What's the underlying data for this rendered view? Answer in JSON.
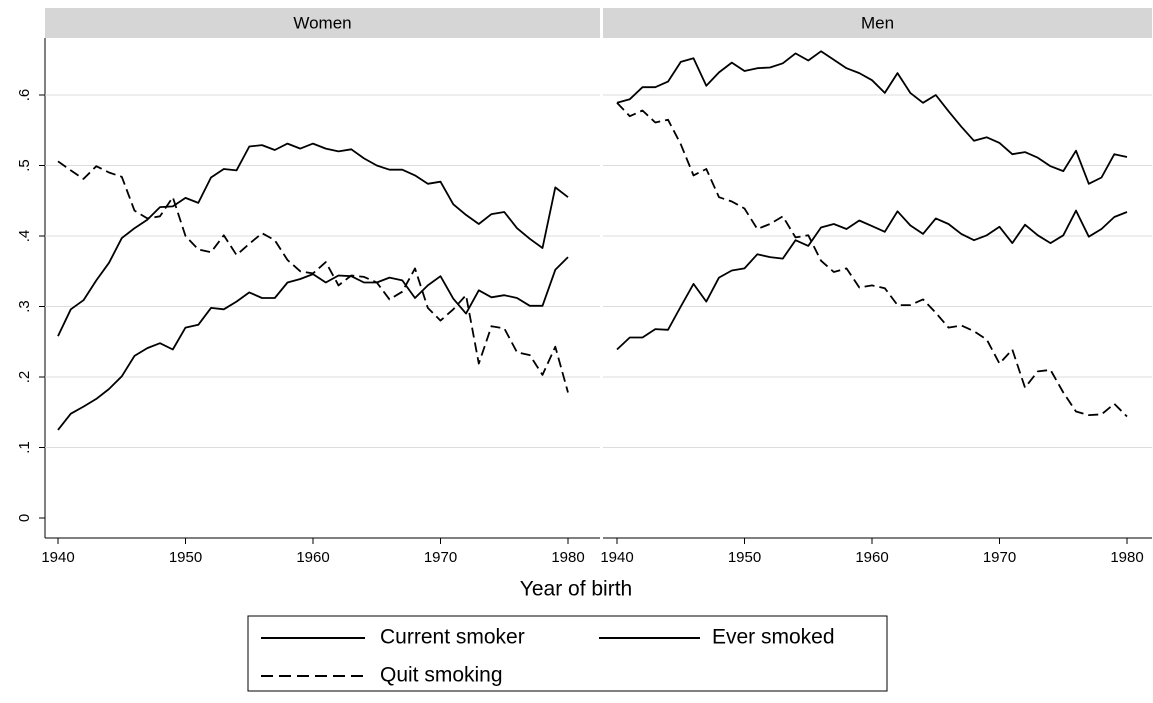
{
  "chart_data": {
    "type": "line",
    "xlabel": "Year of birth",
    "ylabel": "",
    "xlim": [
      1940,
      1980
    ],
    "ylim": [
      0,
      0.6
    ],
    "x_ticks": [
      1940,
      1950,
      1960,
      1970,
      1980
    ],
    "x_tick_labels": [
      "1940",
      "1950",
      "1960",
      "1970",
      "1980"
    ],
    "y_ticks": [
      0,
      0.1,
      0.2,
      0.3,
      0.4,
      0.5,
      0.6
    ],
    "y_tick_labels": [
      "0",
      ".1",
      ".2",
      ".3",
      ".4",
      ".5",
      ".6"
    ],
    "grid": true,
    "legend_position": "bottom",
    "legend": [
      {
        "label": "Current smoker",
        "style": "solid"
      },
      {
        "label": "Ever smoked",
        "style": "solid"
      },
      {
        "label": "Quit smoking",
        "style": "dashed"
      }
    ],
    "x": [
      1940,
      1941,
      1942,
      1943,
      1944,
      1945,
      1946,
      1947,
      1948,
      1949,
      1950,
      1951,
      1952,
      1953,
      1954,
      1955,
      1956,
      1957,
      1958,
      1959,
      1960,
      1961,
      1962,
      1963,
      1964,
      1965,
      1966,
      1967,
      1968,
      1969,
      1970,
      1971,
      1972,
      1973,
      1974,
      1975,
      1976,
      1977,
      1978,
      1979,
      1980
    ],
    "panels": [
      {
        "title": "Women",
        "series": [
          {
            "name": "Current smoker",
            "style": "solid",
            "values": [
              0.125,
              0.148,
              0.158,
              0.169,
              0.183,
              0.201,
              0.23,
              0.241,
              0.248,
              0.239,
              0.27,
              0.274,
              0.298,
              0.296,
              0.307,
              0.32,
              0.312,
              0.312,
              0.334,
              0.339,
              0.346,
              0.334,
              0.344,
              0.343,
              0.334,
              0.334,
              0.341,
              0.337,
              0.312,
              0.33,
              0.343,
              0.311,
              0.29,
              0.323,
              0.313,
              0.316,
              0.312,
              0.301,
              0.301,
              0.352,
              0.37
            ]
          },
          {
            "name": "Ever smoked",
            "style": "solid",
            "values": [
              0.258,
              0.296,
              0.309,
              0.337,
              0.362,
              0.397,
              0.411,
              0.423,
              0.441,
              0.442,
              0.454,
              0.447,
              0.483,
              0.495,
              0.493,
              0.527,
              0.529,
              0.522,
              0.531,
              0.524,
              0.531,
              0.524,
              0.52,
              0.523,
              0.51,
              0.5,
              0.494,
              0.494,
              0.486,
              0.474,
              0.477,
              0.445,
              0.43,
              0.417,
              0.431,
              0.434,
              0.411,
              0.396,
              0.383,
              0.469,
              0.455
            ]
          },
          {
            "name": "Quit smoking",
            "style": "dashed",
            "values": [
              0.506,
              0.493,
              0.481,
              0.499,
              0.49,
              0.484,
              0.436,
              0.425,
              0.428,
              0.455,
              0.4,
              0.381,
              0.377,
              0.401,
              0.373,
              0.389,
              0.404,
              0.394,
              0.366,
              0.35,
              0.347,
              0.363,
              0.33,
              0.344,
              0.342,
              0.334,
              0.31,
              0.321,
              0.354,
              0.298,
              0.28,
              0.296,
              0.316,
              0.219,
              0.272,
              0.269,
              0.235,
              0.231,
              0.203,
              0.243,
              0.178
            ]
          }
        ]
      },
      {
        "title": "Men",
        "series": [
          {
            "name": "Current smoker",
            "style": "solid",
            "values": [
              0.239,
              0.256,
              0.256,
              0.268,
              0.267,
              0.3,
              0.332,
              0.307,
              0.341,
              0.351,
              0.354,
              0.374,
              0.37,
              0.368,
              0.394,
              0.386,
              0.412,
              0.417,
              0.41,
              0.422,
              0.414,
              0.406,
              0.435,
              0.415,
              0.403,
              0.425,
              0.417,
              0.403,
              0.394,
              0.401,
              0.413,
              0.39,
              0.416,
              0.401,
              0.39,
              0.401,
              0.436,
              0.399,
              0.41,
              0.427,
              0.434
            ]
          },
          {
            "name": "Ever smoked",
            "style": "solid",
            "values": [
              0.589,
              0.594,
              0.611,
              0.611,
              0.619,
              0.647,
              0.652,
              0.613,
              0.632,
              0.646,
              0.634,
              0.638,
              0.639,
              0.645,
              0.659,
              0.649,
              0.662,
              0.65,
              0.638,
              0.631,
              0.621,
              0.603,
              0.631,
              0.603,
              0.589,
              0.6,
              0.577,
              0.555,
              0.535,
              0.54,
              0.532,
              0.516,
              0.519,
              0.511,
              0.499,
              0.492,
              0.521,
              0.474,
              0.483,
              0.516,
              0.512
            ]
          },
          {
            "name": "Quit smoking",
            "style": "dashed",
            "values": [
              0.589,
              0.57,
              0.578,
              0.561,
              0.565,
              0.53,
              0.486,
              0.495,
              0.455,
              0.449,
              0.439,
              0.41,
              0.417,
              0.428,
              0.398,
              0.401,
              0.365,
              0.349,
              0.354,
              0.327,
              0.33,
              0.326,
              0.302,
              0.302,
              0.31,
              0.291,
              0.27,
              0.273,
              0.265,
              0.253,
              0.219,
              0.239,
              0.185,
              0.208,
              0.21,
              0.178,
              0.151,
              0.146,
              0.147,
              0.162,
              0.144
            ]
          }
        ]
      }
    ]
  }
}
